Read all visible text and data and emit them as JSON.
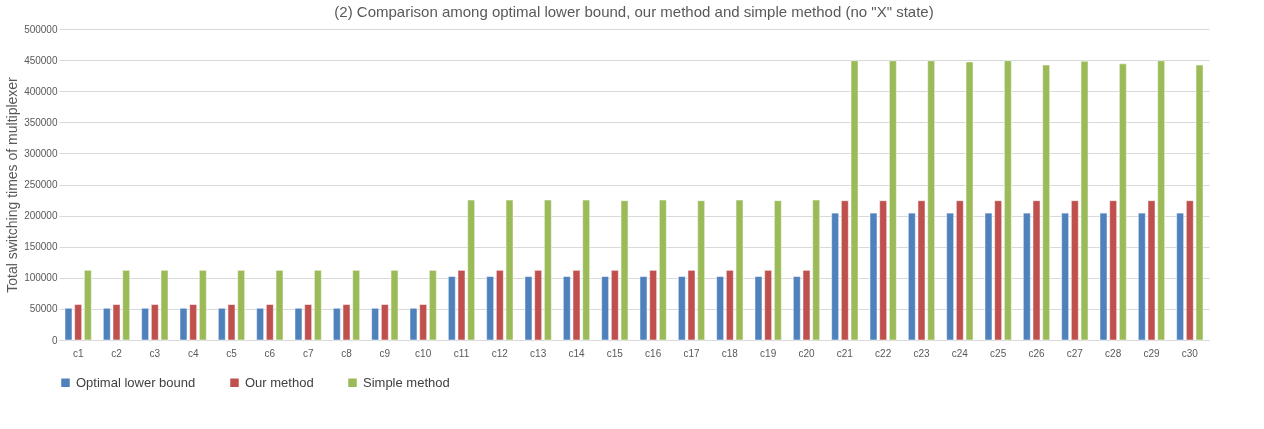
{
  "chart_data": {
    "type": "bar",
    "title": "(2) Comparison among optimal lower bound, our method and simple method (no \"X\" state)",
    "ylabel": "Total switching times of multiplexer",
    "categories": [
      "c1",
      "c2",
      "c3",
      "c4",
      "c5",
      "c6",
      "c7",
      "c8",
      "c9",
      "c10",
      "c11",
      "c12",
      "c13",
      "c14",
      "c15",
      "c16",
      "c17",
      "c18",
      "c19",
      "c20",
      "c21",
      "c22",
      "c23",
      "c24",
      "c25",
      "c26",
      "c27",
      "c28",
      "c29",
      "c30"
    ],
    "series": [
      {
        "name": "Optimal lower bound",
        "color": "#4f81bd",
        "values": [
          51000,
          51000,
          51000,
          51000,
          51000,
          51000,
          51000,
          51000,
          51000,
          51000,
          102000,
          102000,
          102000,
          102000,
          102000,
          102000,
          102000,
          102000,
          102000,
          102000,
          204000,
          204000,
          204000,
          204000,
          204000,
          204000,
          204000,
          204000,
          204000,
          204000
        ]
      },
      {
        "name": "Our method",
        "color": "#c0504d",
        "values": [
          57000,
          57000,
          57000,
          57000,
          57000,
          57000,
          57000,
          57000,
          57000,
          57000,
          112000,
          112000,
          112000,
          112000,
          112000,
          112000,
          112000,
          112000,
          112000,
          112000,
          224000,
          224000,
          224000,
          224000,
          224000,
          224000,
          224000,
          224000,
          224000,
          224000
        ]
      },
      {
        "name": "Simple method",
        "color": "#9bbb59",
        "values": [
          112000,
          112000,
          112000,
          112000,
          112000,
          112000,
          112000,
          112000,
          112000,
          112000,
          225000,
          225000,
          225000,
          225000,
          224000,
          225000,
          224000,
          225000,
          224000,
          225000,
          449000,
          449000,
          449000,
          447000,
          449000,
          442000,
          448000,
          444000,
          449000,
          442000
        ]
      }
    ],
    "ylim": [
      0,
      500000
    ],
    "yticks": [
      0,
      50000,
      100000,
      150000,
      200000,
      250000,
      300000,
      350000,
      400000,
      450000,
      500000
    ],
    "grid": "y",
    "legend": "bottom"
  }
}
